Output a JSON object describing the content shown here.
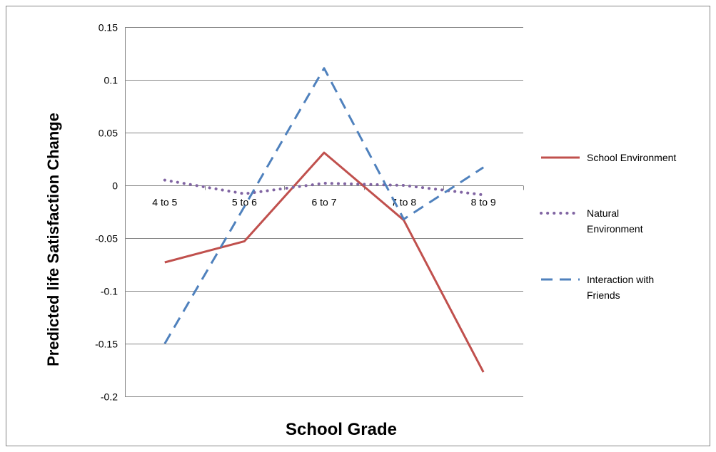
{
  "chart_data": {
    "type": "line",
    "categories": [
      "4 to 5",
      "5 to 6",
      "6 to 7",
      "7 to 8",
      "8 to 9"
    ],
    "series": [
      {
        "name": "School Environment",
        "name_lines": [
          "School Environment"
        ],
        "values": [
          -0.073,
          -0.053,
          0.031,
          -0.033,
          -0.177
        ],
        "color": "#c0504d",
        "dash": "solid"
      },
      {
        "name": "Natural Environment",
        "name_lines": [
          "Natural",
          "Environment"
        ],
        "values": [
          0.005,
          -0.008,
          0.002,
          0.0,
          -0.009
        ],
        "color": "#8064a2",
        "dash": "dotted"
      },
      {
        "name": "Interaction with Friends",
        "name_lines": [
          "Interaction with",
          "Friends"
        ],
        "values": [
          -0.15,
          -0.02,
          0.111,
          -0.032,
          0.017
        ],
        "color": "#4f81bd",
        "dash": "dashed"
      }
    ],
    "xlabel": "School Grade",
    "ylabel": "Predicted life Satisfaction Change",
    "ylim": [
      -0.2,
      0.15
    ],
    "yticks": [
      0.15,
      0.1,
      0.05,
      0,
      -0.05,
      -0.1,
      -0.15,
      -0.2
    ],
    "ytick_labels": [
      "0.15",
      "0.1",
      "0.05",
      "0",
      "-0.05",
      "-0.1",
      "-0.15",
      "-0.2"
    ],
    "grid": true,
    "legend_position": "right"
  }
}
